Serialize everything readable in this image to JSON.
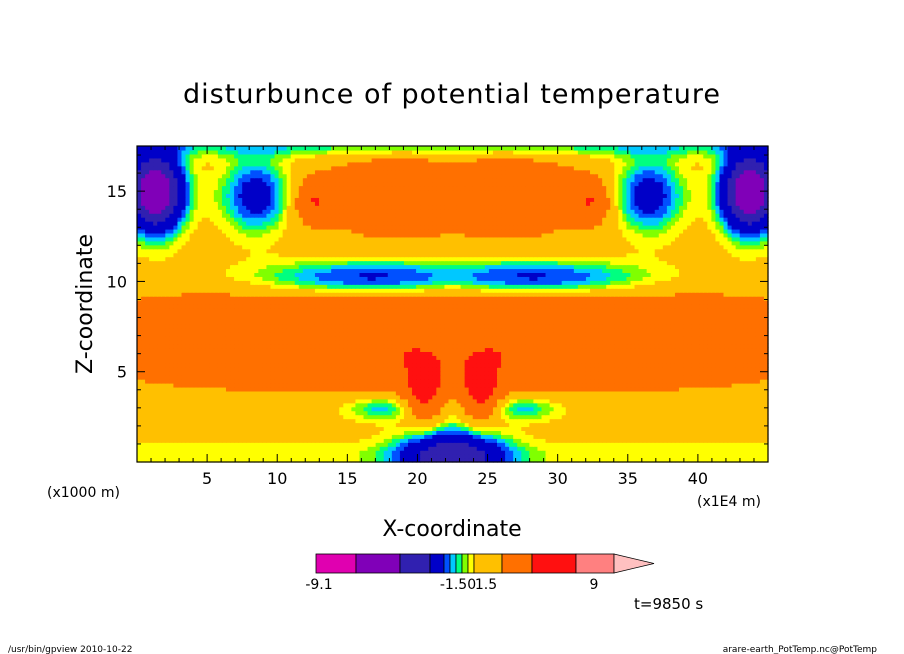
{
  "chart_data": {
    "type": "heatmap",
    "title": "disturbunce of potential temperature",
    "xlabel": "X-coordinate",
    "ylabel": "Z-coordinate",
    "x_unit": "(x1E4 m)",
    "y_unit": "(x1000 m)",
    "xlim": [
      0,
      45
    ],
    "ylim": [
      0,
      17.5
    ],
    "x_ticks": [
      5,
      10,
      15,
      20,
      25,
      30,
      35,
      40
    ],
    "y_ticks": [
      5,
      10,
      15
    ],
    "time_label": "t=9850 s",
    "colorbar": {
      "colors": [
        "#e000b0",
        "#8000b8",
        "#3020b0",
        "#0000c8",
        "#0050ff",
        "#00c8ff",
        "#00ff80",
        "#80ff00",
        "#ffff00",
        "#ffc000",
        "#ff7000",
        "#ff1010",
        "#ff8080",
        "#ffc0c0"
      ],
      "tick_labels": [
        "-9.1",
        "-1.50",
        "1.5",
        "9"
      ]
    }
  },
  "footer": {
    "left": "/usr/bin/gpview   2010-10-22",
    "right": "arare-earth_PotTemp.nc@PotTemp"
  }
}
